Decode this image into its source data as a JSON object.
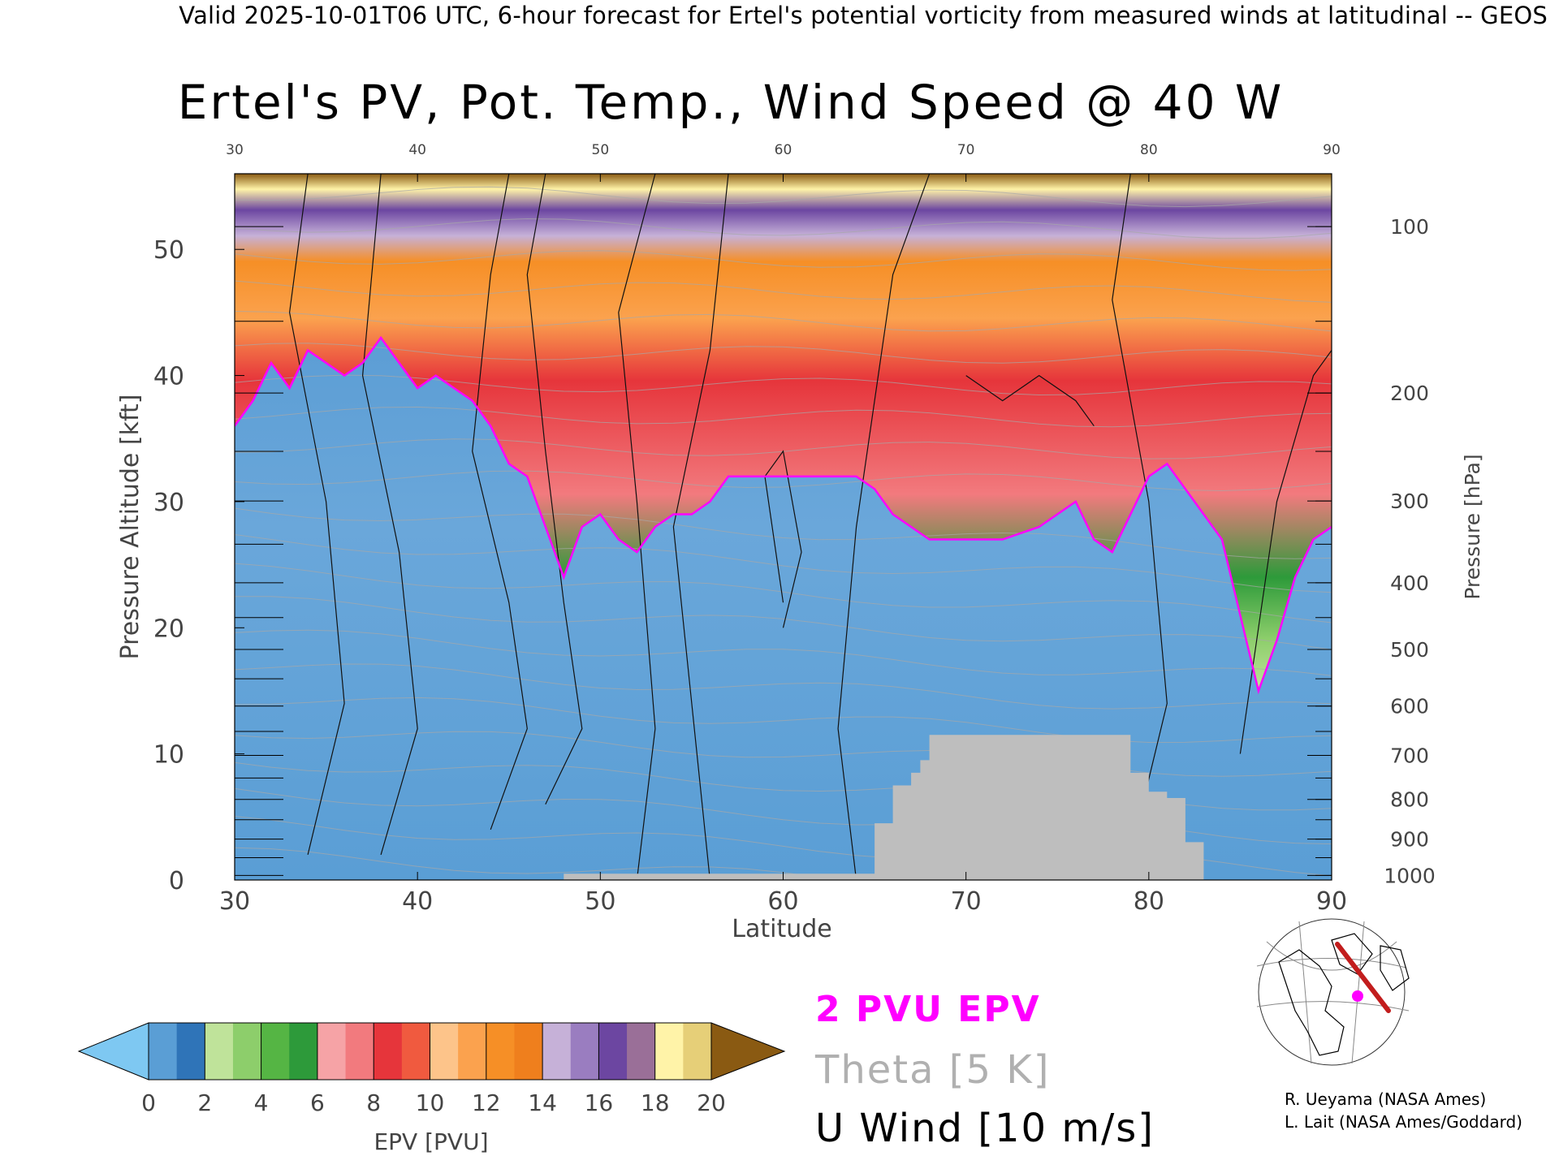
{
  "header": "Valid 2025-10-01T06 UTC, 6-hour forecast for Ertel's potential vorticity from measured winds at latitudinal -- GEOS",
  "chart_data": {
    "type": "heatmap",
    "title": "Ertel's PV, Pot. Temp., Wind Speed @ 40 W",
    "xlabel": "Latitude",
    "ylabel_left": "Pressure Altitude [kft]",
    "ylabel_right": "Pressure [hPa]",
    "xlim": [
      30,
      90
    ],
    "ylim_kft": [
      0,
      56
    ],
    "x_ticks": [
      30,
      40,
      50,
      60,
      70,
      80,
      90
    ],
    "y_ticks_kft": [
      0,
      10,
      20,
      30,
      40,
      50
    ],
    "pressure_ticks_hpa": [
      100,
      200,
      300,
      400,
      500,
      600,
      700,
      800,
      900,
      1000
    ],
    "tropopause_2pvu_kft": [
      [
        30,
        36
      ],
      [
        31,
        38
      ],
      [
        32,
        41
      ],
      [
        33,
        39
      ],
      [
        34,
        42
      ],
      [
        35,
        41
      ],
      [
        36,
        40
      ],
      [
        37,
        41
      ],
      [
        38,
        43
      ],
      [
        39,
        41
      ],
      [
        40,
        39
      ],
      [
        41,
        40
      ],
      [
        42,
        39
      ],
      [
        43,
        38
      ],
      [
        44,
        36
      ],
      [
        45,
        33
      ],
      [
        46,
        32
      ],
      [
        47,
        28
      ],
      [
        48,
        24
      ],
      [
        49,
        28
      ],
      [
        50,
        29
      ],
      [
        51,
        27
      ],
      [
        52,
        26
      ],
      [
        53,
        28
      ],
      [
        54,
        29
      ],
      [
        55,
        29
      ],
      [
        56,
        30
      ],
      [
        57,
        32
      ],
      [
        58,
        32
      ],
      [
        60,
        32
      ],
      [
        62,
        32
      ],
      [
        64,
        32
      ],
      [
        65,
        31
      ],
      [
        66,
        29
      ],
      [
        68,
        27
      ],
      [
        70,
        27
      ],
      [
        72,
        27
      ],
      [
        74,
        28
      ],
      [
        76,
        30
      ],
      [
        77,
        27
      ],
      [
        78,
        26
      ],
      [
        79,
        29
      ],
      [
        80,
        32
      ],
      [
        81,
        33
      ],
      [
        82,
        31
      ],
      [
        83,
        29
      ],
      [
        84,
        27
      ],
      [
        85,
        21
      ],
      [
        86,
        15
      ],
      [
        87,
        19
      ],
      [
        88,
        24
      ],
      [
        89,
        27
      ],
      [
        90,
        28
      ]
    ],
    "surface_mask_kft": [
      [
        48,
        0.5
      ],
      [
        64.5,
        0.5
      ],
      [
        65,
        4.5
      ],
      [
        66,
        7.5
      ],
      [
        67,
        8.5
      ],
      [
        67.5,
        9.5
      ],
      [
        68,
        11.5
      ],
      [
        77,
        11.5
      ],
      [
        78,
        11.5
      ],
      [
        79,
        8.5
      ],
      [
        80,
        7
      ],
      [
        81,
        6.5
      ],
      [
        82,
        3
      ],
      [
        83,
        0.5
      ]
    ],
    "colorbar": {
      "label": "EPV [PVU]",
      "ticks": [
        0,
        2,
        4,
        6,
        8,
        10,
        12,
        14,
        16,
        18,
        20
      ],
      "bins": [
        {
          "range": [
            0,
            1
          ],
          "color": "#5a9ed5"
        },
        {
          "range": [
            1,
            2
          ],
          "color": "#2f74b8"
        },
        {
          "range": [
            2,
            3
          ],
          "color": "#bfe39a"
        },
        {
          "range": [
            3,
            4
          ],
          "color": "#8dce6b"
        },
        {
          "range": [
            4,
            5
          ],
          "color": "#55b544"
        },
        {
          "range": [
            5,
            6
          ],
          "color": "#2d9a3a"
        },
        {
          "range": [
            6,
            7
          ],
          "color": "#f6a3a6"
        },
        {
          "range": [
            7,
            8
          ],
          "color": "#f27a7e"
        },
        {
          "range": [
            8,
            9
          ],
          "color": "#e6353b"
        },
        {
          "range": [
            9,
            10
          ],
          "color": "#f05a3f"
        },
        {
          "range": [
            10,
            11
          ],
          "color": "#fdc48a"
        },
        {
          "range": [
            11,
            12
          ],
          "color": "#fba24e"
        },
        {
          "range": [
            12,
            13
          ],
          "color": "#f68f26"
        },
        {
          "range": [
            13,
            14
          ],
          "color": "#ef7f1d"
        },
        {
          "range": [
            14,
            15
          ],
          "color": "#c6b1d8"
        },
        {
          "range": [
            15,
            16
          ],
          "color": "#9a7dc0"
        },
        {
          "range": [
            16,
            17
          ],
          "color": "#6c46a1"
        },
        {
          "range": [
            17,
            18
          ],
          "color": "#9a6f98"
        },
        {
          "range": [
            18,
            19
          ],
          "color": "#fff3a8"
        },
        {
          "range": [
            19,
            20
          ],
          "color": "#e6cf78"
        }
      ],
      "under_color": "#7ec8f2",
      "over_color": "#8a5a12"
    },
    "legend": [
      {
        "label": "2 PVU EPV",
        "color": "#ff00ff"
      },
      {
        "label": "Theta [5 K]",
        "color": "#b0b0b0"
      },
      {
        "label": "U Wind [10 m/s]",
        "color": "#000000"
      }
    ],
    "grid": false
  },
  "credits": [
    "R. Ueyama (NASA Ames)",
    "L. Lait (NASA Ames/Goddard)"
  ]
}
